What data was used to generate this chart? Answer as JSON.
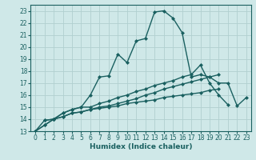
{
  "xlabel": "Humidex (Indice chaleur)",
  "bg_color": "#cfe8e8",
  "grid_color": "#b0d0d0",
  "line_color": "#1a6060",
  "xlim": [
    -0.5,
    23.5
  ],
  "ylim": [
    13,
    23.5
  ],
  "xticks": [
    0,
    1,
    2,
    3,
    4,
    5,
    6,
    7,
    8,
    9,
    10,
    11,
    12,
    13,
    14,
    15,
    16,
    17,
    18,
    19,
    20,
    21,
    22,
    23
  ],
  "yticks": [
    13,
    14,
    15,
    16,
    17,
    18,
    19,
    20,
    21,
    22,
    23
  ],
  "line1_x": [
    0,
    1,
    2,
    3,
    4,
    5,
    6,
    7,
    8,
    9,
    10,
    11,
    12,
    13,
    14,
    15,
    16,
    17,
    18,
    19,
    20
  ],
  "line1_y": [
    13.0,
    13.5,
    14.0,
    14.2,
    14.5,
    14.6,
    14.8,
    14.9,
    15.0,
    15.1,
    15.3,
    15.4,
    15.5,
    15.6,
    15.8,
    15.9,
    16.0,
    16.1,
    16.2,
    16.4,
    16.5
  ],
  "line2_x": [
    0,
    1,
    2,
    3,
    4,
    5,
    6,
    7,
    8,
    9,
    10,
    11,
    12,
    13,
    14,
    15,
    16,
    17,
    18,
    19,
    20,
    21,
    22,
    23
  ],
  "line2_y": [
    13.0,
    13.5,
    14.0,
    14.2,
    14.5,
    14.6,
    14.8,
    15.0,
    15.1,
    15.3,
    15.5,
    15.7,
    16.0,
    16.2,
    16.5,
    16.7,
    16.9,
    17.1,
    17.3,
    17.5,
    17.7,
    null,
    null,
    null
  ],
  "line3_x": [
    0,
    1,
    2,
    3,
    4,
    5,
    6,
    7,
    8,
    9,
    10,
    11,
    12,
    13,
    14,
    15,
    16,
    17,
    18,
    19,
    20,
    21,
    22,
    23
  ],
  "line3_y": [
    13.0,
    13.9,
    14.0,
    14.5,
    14.8,
    15.0,
    15.0,
    15.3,
    15.5,
    15.8,
    16.0,
    16.3,
    16.5,
    16.8,
    17.0,
    17.2,
    17.5,
    17.7,
    18.5,
    17.0,
    16.0,
    15.2,
    null,
    null
  ],
  "line4_x": [
    1,
    2,
    3,
    4,
    5,
    6,
    7,
    8,
    9,
    10,
    11,
    12,
    13,
    14,
    15,
    16,
    17,
    18,
    19,
    20,
    21,
    22,
    23
  ],
  "line4_y": [
    13.9,
    14.0,
    14.5,
    14.8,
    15.0,
    16.0,
    17.5,
    17.6,
    19.4,
    18.7,
    20.5,
    20.7,
    22.9,
    23.0,
    22.4,
    21.2,
    17.5,
    17.7,
    17.5,
    17.0,
    17.0,
    15.1,
    15.8
  ],
  "marker": "D",
  "marker_size": 2.0,
  "line_width": 1.0,
  "tick_fontsize": 5.5,
  "xlabel_fontsize": 6.5
}
